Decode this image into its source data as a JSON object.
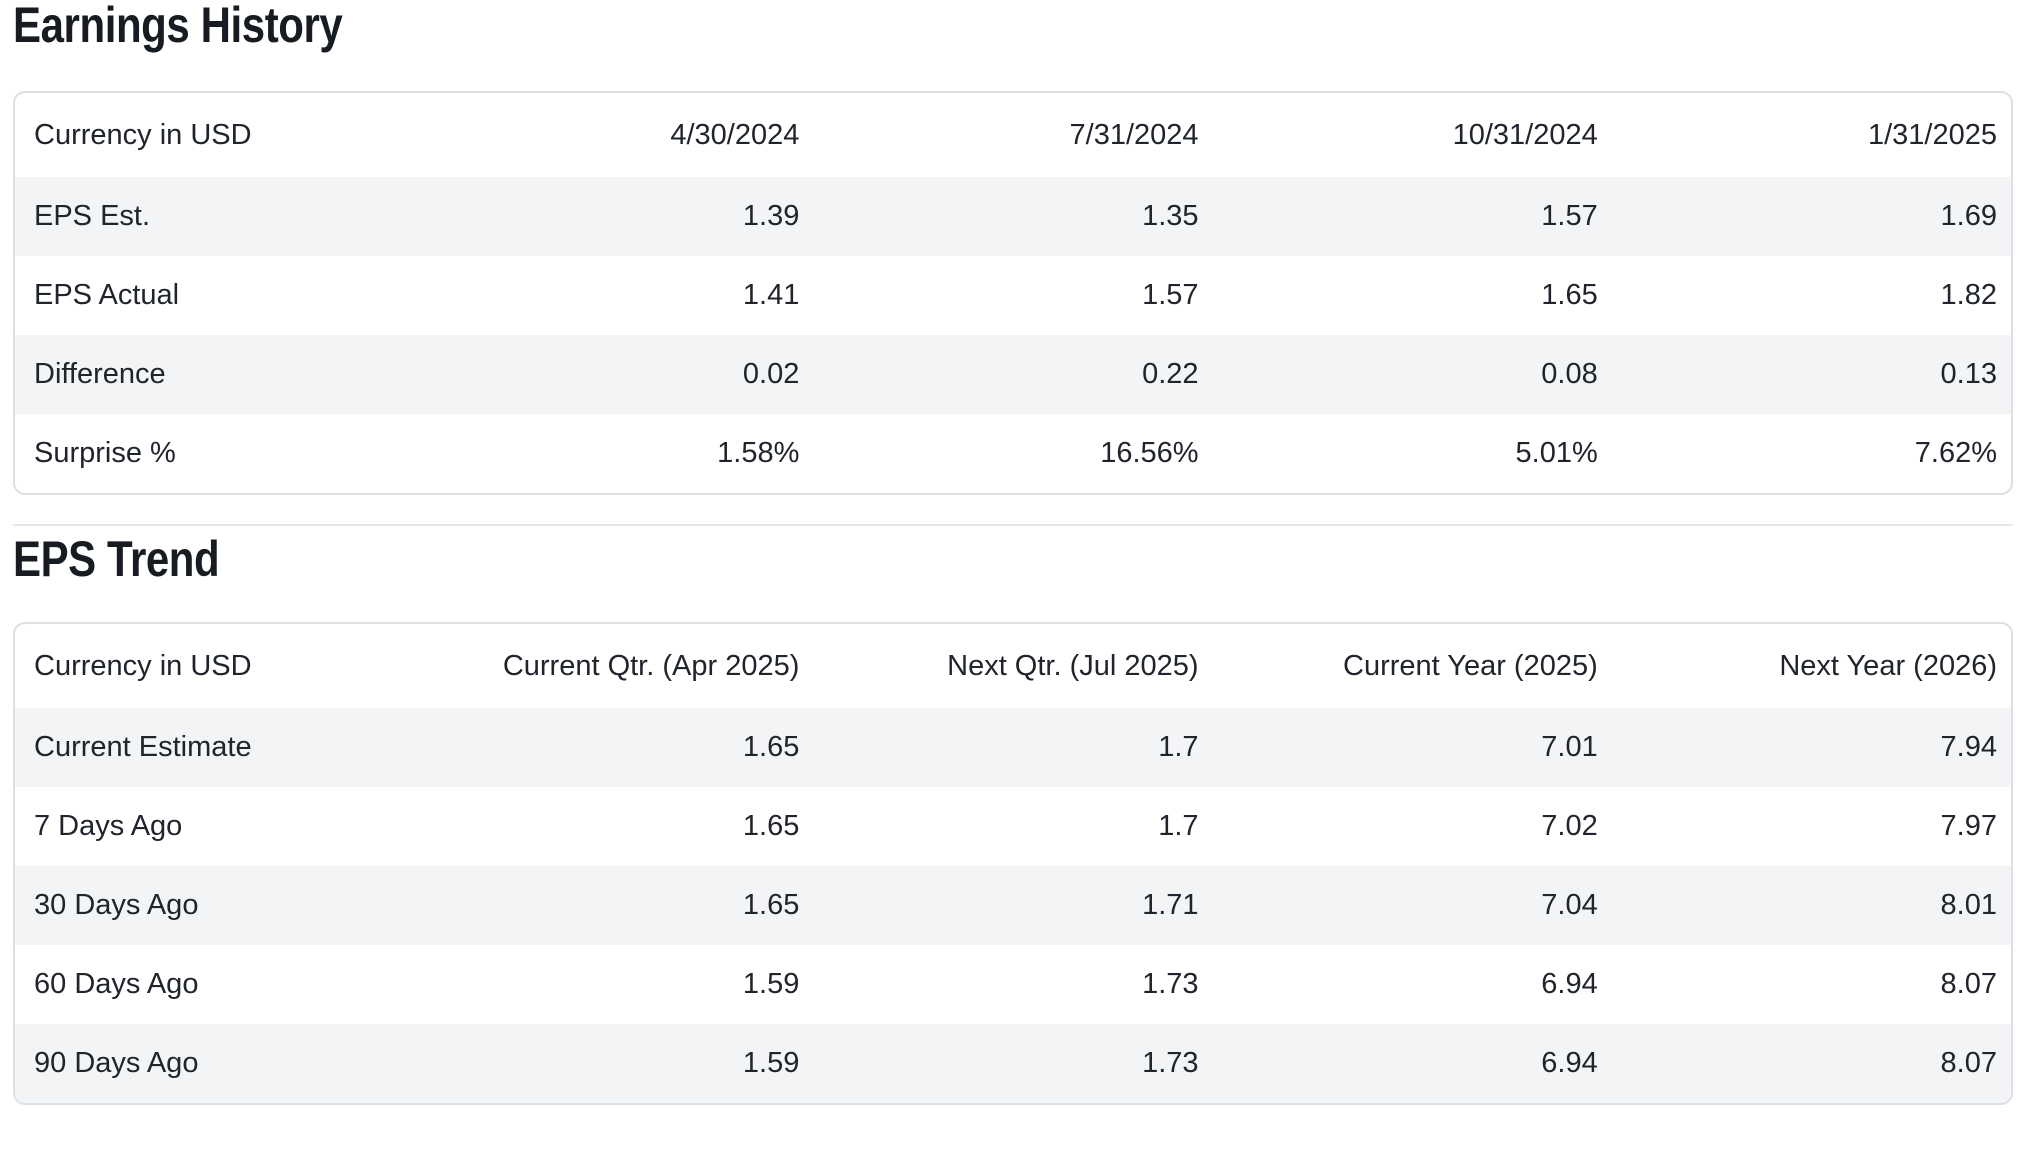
{
  "theme": {
    "background": "#ffffff",
    "text_color": "#20242c",
    "title_color": "#171b22",
    "row_stripe_color": "#f3f4f6",
    "card_border_color": "#dcdfe4",
    "divider_color": "#e4e6e9"
  },
  "sections": [
    {
      "title": "Earnings History",
      "table": {
        "header": [
          "Currency in USD",
          "4/30/2024",
          "7/31/2024",
          "10/31/2024",
          "1/31/2025"
        ],
        "rows": [
          {
            "label": "EPS Est.",
            "values": [
              "1.39",
              "1.35",
              "1.57",
              "1.69"
            ]
          },
          {
            "label": "EPS Actual",
            "values": [
              "1.41",
              "1.57",
              "1.65",
              "1.82"
            ]
          },
          {
            "label": "Difference",
            "values": [
              "0.02",
              "0.22",
              "0.08",
              "0.13"
            ]
          },
          {
            "label": "Surprise %",
            "values": [
              "1.58%",
              "16.56%",
              "5.01%",
              "7.62%"
            ]
          }
        ]
      }
    },
    {
      "title": "EPS Trend",
      "table": {
        "header": [
          "Currency in USD",
          "Current Qtr. (Apr 2025)",
          "Next Qtr. (Jul 2025)",
          "Current Year (2025)",
          "Next Year (2026)"
        ],
        "rows": [
          {
            "label": "Current Estimate",
            "values": [
              "1.65",
              "1.7",
              "7.01",
              "7.94"
            ]
          },
          {
            "label": "7 Days Ago",
            "values": [
              "1.65",
              "1.7",
              "7.02",
              "7.97"
            ]
          },
          {
            "label": "30 Days Ago",
            "values": [
              "1.65",
              "1.71",
              "7.04",
              "8.01"
            ]
          },
          {
            "label": "60 Days Ago",
            "values": [
              "1.59",
              "1.73",
              "6.94",
              "8.07"
            ]
          },
          {
            "label": "90 Days Ago",
            "values": [
              "1.59",
              "1.73",
              "6.94",
              "8.07"
            ]
          }
        ]
      }
    }
  ]
}
